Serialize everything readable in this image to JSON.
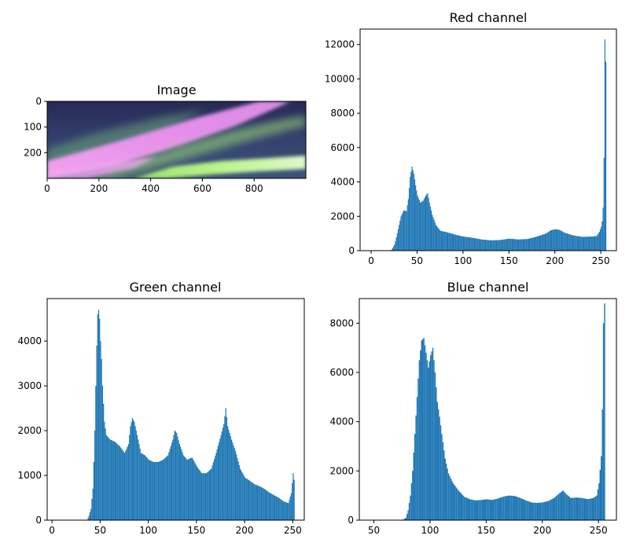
{
  "chart_data": [
    {
      "type": "image",
      "title": "Image",
      "xlim": [
        0,
        1000
      ],
      "ylim": [
        300,
        0
      ],
      "x_ticks": [
        0,
        200,
        400,
        600,
        800
      ],
      "y_ticks": [
        0,
        100,
        200
      ],
      "colors": {
        "sky_top": "#2a2f5c",
        "sky_mid": "#3b4a78",
        "pink_band": "#e68ae8",
        "pink_bright": "#f3a6f3",
        "green_band": "#a8f07a",
        "green_pale": "#d6f7b6"
      }
    },
    {
      "type": "bar",
      "title": "Red channel",
      "color": "#1f77b4",
      "xlim": [
        -12,
        267
      ],
      "ylim": [
        0,
        12900
      ],
      "x_ticks": [
        0,
        50,
        100,
        150,
        200,
        250
      ],
      "y_ticks": [
        0,
        2000,
        4000,
        6000,
        8000,
        10000,
        12000
      ],
      "profile": [
        [
          20,
          0
        ],
        [
          22,
          60
        ],
        [
          25,
          350
        ],
        [
          28,
          1000
        ],
        [
          32,
          2000
        ],
        [
          35,
          2350
        ],
        [
          38,
          2300
        ],
        [
          40,
          3000
        ],
        [
          42,
          4300
        ],
        [
          44,
          4900
        ],
        [
          46,
          4500
        ],
        [
          48,
          3800
        ],
        [
          50,
          3200
        ],
        [
          53,
          2800
        ],
        [
          56,
          2900
        ],
        [
          59,
          3200
        ],
        [
          61,
          3350
        ],
        [
          63,
          2800
        ],
        [
          66,
          2100
        ],
        [
          70,
          1500
        ],
        [
          75,
          1150
        ],
        [
          80,
          1100
        ],
        [
          90,
          950
        ],
        [
          100,
          820
        ],
        [
          110,
          750
        ],
        [
          120,
          650
        ],
        [
          130,
          600
        ],
        [
          140,
          620
        ],
        [
          150,
          700
        ],
        [
          160,
          650
        ],
        [
          170,
          680
        ],
        [
          180,
          820
        ],
        [
          190,
          1000
        ],
        [
          195,
          1180
        ],
        [
          200,
          1250
        ],
        [
          205,
          1200
        ],
        [
          210,
          1050
        ],
        [
          220,
          880
        ],
        [
          230,
          800
        ],
        [
          240,
          820
        ],
        [
          245,
          850
        ],
        [
          248,
          1100
        ],
        [
          250,
          1400
        ],
        [
          251,
          1700
        ],
        [
          252,
          2500
        ],
        [
          253,
          5400
        ],
        [
          254,
          12300
        ],
        [
          255,
          11000
        ]
      ]
    },
    {
      "type": "bar",
      "title": "Green channel",
      "color": "#1f77b4",
      "xlim": [
        -5,
        262
      ],
      "ylim": [
        0,
        4950
      ],
      "x_ticks": [
        0,
        50,
        100,
        150,
        200,
        250
      ],
      "y_ticks": [
        0,
        1000,
        2000,
        3000,
        4000
      ],
      "profile": [
        [
          36,
          0
        ],
        [
          38,
          100
        ],
        [
          40,
          250
        ],
        [
          42,
          700
        ],
        [
          43,
          1300
        ],
        [
          44,
          2000
        ],
        [
          45,
          3000
        ],
        [
          46,
          3900
        ],
        [
          47,
          4600
        ],
        [
          48,
          4700
        ],
        [
          49,
          4500
        ],
        [
          50,
          4000
        ],
        [
          51,
          3600
        ],
        [
          52,
          3000
        ],
        [
          54,
          2200
        ],
        [
          56,
          1900
        ],
        [
          60,
          1800
        ],
        [
          65,
          1750
        ],
        [
          70,
          1650
        ],
        [
          75,
          1500
        ],
        [
          79,
          1700
        ],
        [
          81,
          2100
        ],
        [
          83,
          2280
        ],
        [
          85,
          2200
        ],
        [
          88,
          1900
        ],
        [
          92,
          1500
        ],
        [
          96,
          1450
        ],
        [
          100,
          1350
        ],
        [
          105,
          1300
        ],
        [
          110,
          1300
        ],
        [
          115,
          1350
        ],
        [
          120,
          1450
        ],
        [
          125,
          1800
        ],
        [
          127,
          2000
        ],
        [
          129,
          1950
        ],
        [
          132,
          1700
        ],
        [
          136,
          1450
        ],
        [
          140,
          1350
        ],
        [
          145,
          1400
        ],
        [
          150,
          1200
        ],
        [
          155,
          1050
        ],
        [
          160,
          1050
        ],
        [
          165,
          1150
        ],
        [
          170,
          1500
        ],
        [
          175,
          1900
        ],
        [
          178,
          2150
        ],
        [
          180,
          2500
        ],
        [
          182,
          2100
        ],
        [
          186,
          1800
        ],
        [
          190,
          1550
        ],
        [
          195,
          1150
        ],
        [
          200,
          950
        ],
        [
          205,
          880
        ],
        [
          210,
          800
        ],
        [
          215,
          760
        ],
        [
          220,
          700
        ],
        [
          225,
          620
        ],
        [
          230,
          560
        ],
        [
          235,
          500
        ],
        [
          240,
          420
        ],
        [
          245,
          380
        ],
        [
          248,
          600
        ],
        [
          250,
          1050
        ],
        [
          251,
          900
        ],
        [
          252,
          0
        ]
      ]
    },
    {
      "type": "bar",
      "title": "Blue channel",
      "color": "#1f77b4",
      "xlim": [
        37,
        266
      ],
      "ylim": [
        0,
        9000
      ],
      "x_ticks": [
        50,
        100,
        150,
        200,
        250
      ],
      "y_ticks": [
        0,
        2000,
        4000,
        6000,
        8000
      ],
      "profile": [
        [
          75,
          0
        ],
        [
          78,
          100
        ],
        [
          80,
          400
        ],
        [
          82,
          1000
        ],
        [
          84,
          2000
        ],
        [
          86,
          3500
        ],
        [
          88,
          5000
        ],
        [
          90,
          6500
        ],
        [
          92,
          7300
        ],
        [
          94,
          7400
        ],
        [
          96,
          6800
        ],
        [
          98,
          6200
        ],
        [
          100,
          6700
        ],
        [
          102,
          7000
        ],
        [
          104,
          6000
        ],
        [
          106,
          4800
        ],
        [
          108,
          4200
        ],
        [
          110,
          3500
        ],
        [
          113,
          2500
        ],
        [
          116,
          1900
        ],
        [
          120,
          1500
        ],
        [
          125,
          1200
        ],
        [
          130,
          950
        ],
        [
          135,
          850
        ],
        [
          140,
          800
        ],
        [
          145,
          820
        ],
        [
          150,
          850
        ],
        [
          155,
          820
        ],
        [
          160,
          880
        ],
        [
          165,
          960
        ],
        [
          170,
          1000
        ],
        [
          175,
          980
        ],
        [
          180,
          900
        ],
        [
          185,
          800
        ],
        [
          190,
          720
        ],
        [
          195,
          700
        ],
        [
          200,
          720
        ],
        [
          205,
          780
        ],
        [
          210,
          900
        ],
        [
          215,
          1100
        ],
        [
          218,
          1200
        ],
        [
          221,
          1050
        ],
        [
          225,
          900
        ],
        [
          230,
          920
        ],
        [
          235,
          900
        ],
        [
          240,
          850
        ],
        [
          245,
          900
        ],
        [
          248,
          1000
        ],
        [
          250,
          1500
        ],
        [
          252,
          2600
        ],
        [
          253,
          4500
        ],
        [
          254,
          8000
        ],
        [
          255,
          8800
        ]
      ]
    }
  ]
}
